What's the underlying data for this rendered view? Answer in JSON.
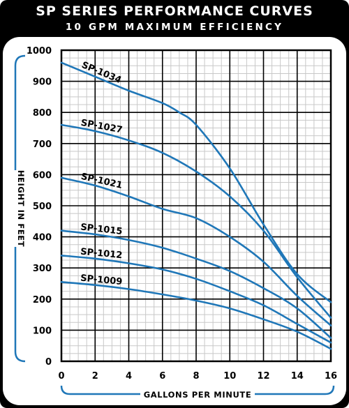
{
  "header": {
    "title": "SP SERIES PERFORMANCE CURVES",
    "subtitle": "10 GPM MAXIMUM EFFICIENCY"
  },
  "colors": {
    "background": "#000000",
    "panel": "#ffffff",
    "grid_major": "#000000",
    "grid_minor": "#c8c8c8",
    "curve": "#1f77b8",
    "bracket": "#1f77b8"
  },
  "chart_data": {
    "type": "line",
    "title": "SP SERIES PERFORMANCE CURVES",
    "subtitle": "10 GPM MAXIMUM EFFICIENCY",
    "xlabel": "GALLONS PER MINUTE",
    "ylabel": "HEIGHT IN FEET",
    "xlim": [
      0,
      16
    ],
    "ylim": [
      0,
      1000
    ],
    "xticks": [
      0,
      2,
      4,
      6,
      8,
      10,
      12,
      14,
      16
    ],
    "yticks": [
      0,
      100,
      200,
      300,
      400,
      500,
      600,
      700,
      800,
      900,
      1000
    ],
    "grid": true,
    "series": [
      {
        "name": "SP-1034",
        "x": [
          0,
          2,
          4,
          6,
          7,
          8,
          10,
          12,
          14,
          16
        ],
        "y": [
          960,
          915,
          870,
          830,
          800,
          760,
          620,
          440,
          280,
          190
        ]
      },
      {
        "name": "SP-1027",
        "x": [
          0,
          2,
          4,
          6,
          8,
          10,
          12,
          14,
          16
        ],
        "y": [
          760,
          740,
          710,
          670,
          610,
          530,
          420,
          270,
          140
        ]
      },
      {
        "name": "SP-1021",
        "x": [
          0,
          2,
          4,
          6,
          8,
          10,
          12,
          14,
          16
        ],
        "y": [
          590,
          565,
          530,
          490,
          460,
          400,
          320,
          210,
          115
        ]
      },
      {
        "name": "SP-1015",
        "x": [
          0,
          2,
          4,
          6,
          8,
          10,
          12,
          14,
          16
        ],
        "y": [
          420,
          408,
          390,
          365,
          330,
          290,
          235,
          170,
          75
        ]
      },
      {
        "name": "SP-1012",
        "x": [
          0,
          2,
          4,
          6,
          8,
          10,
          12,
          14,
          16
        ],
        "y": [
          340,
          330,
          315,
          295,
          265,
          225,
          180,
          120,
          60
        ]
      },
      {
        "name": "SP-1009",
        "x": [
          0,
          2,
          4,
          6,
          8,
          10,
          12,
          14,
          16
        ],
        "y": [
          255,
          245,
          232,
          215,
          195,
          170,
          135,
          95,
          40
        ]
      }
    ]
  }
}
